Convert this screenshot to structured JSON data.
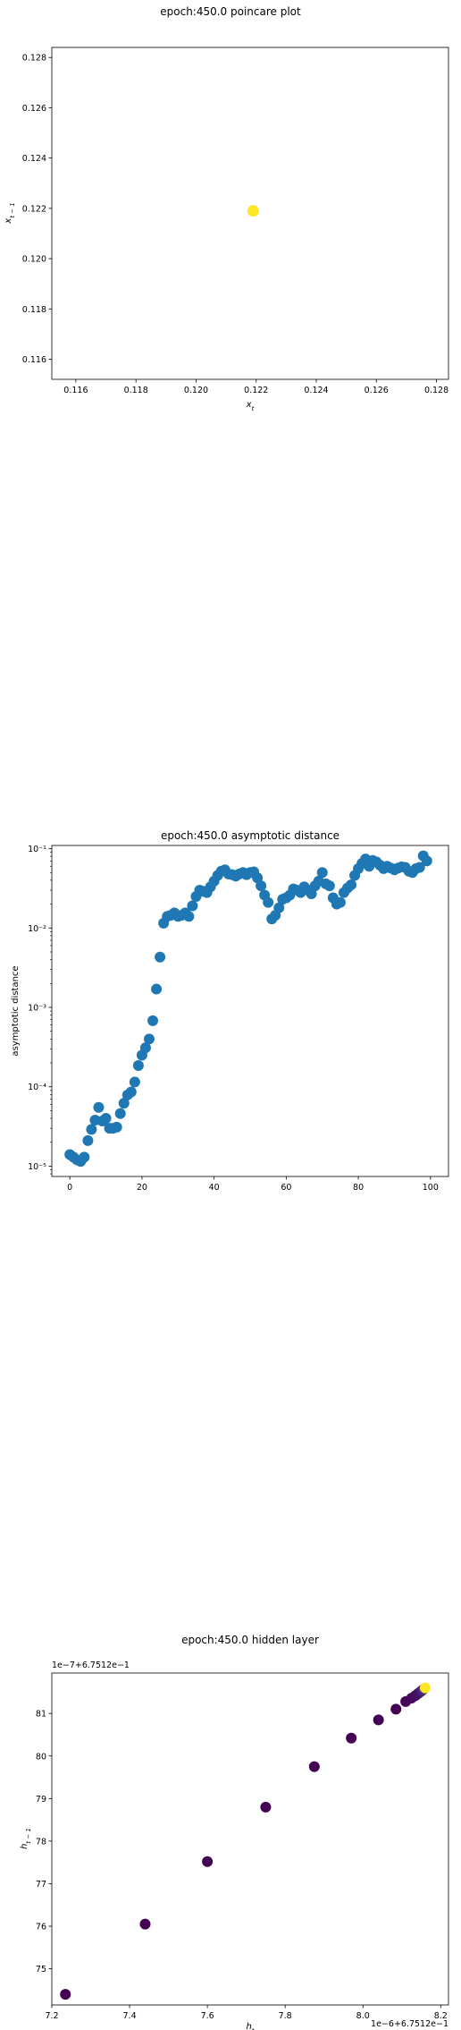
{
  "chart_data": [
    {
      "type": "scatter",
      "title": "epoch:450.0 poincare plot",
      "xlabel": "x_t",
      "ylabel": "x_{t-1}",
      "xlim": [
        0.1152,
        0.1284
      ],
      "ylim": [
        0.1152,
        0.1284
      ],
      "x_ticks": [
        "0.116",
        "0.118",
        "0.120",
        "0.122",
        "0.124",
        "0.126",
        "0.128"
      ],
      "y_ticks": [
        "0.116",
        "0.118",
        "0.120",
        "0.122",
        "0.124",
        "0.126",
        "0.128"
      ],
      "points": [
        {
          "x": 0.1219,
          "y": 0.1219,
          "color": "#fde725"
        }
      ]
    },
    {
      "type": "scatter",
      "title": "epoch:450.0 asymptotic distance",
      "xlabel": "iteration",
      "ylabel": "asymptotic distance",
      "yscale": "log",
      "xlim": [
        -5,
        105
      ],
      "ylim_log10": [
        -5.13,
        -0.96
      ],
      "x_ticks": [
        "0",
        "20",
        "40",
        "60",
        "80",
        "100"
      ],
      "y_ticks": [
        "10⁻⁵",
        "10⁻⁴",
        "10⁻³",
        "10⁻²",
        "10⁻¹"
      ],
      "color": "#1f77b4",
      "x": [
        0,
        1,
        2,
        3,
        4,
        5,
        6,
        7,
        8,
        9,
        10,
        11,
        12,
        13,
        14,
        15,
        16,
        17,
        18,
        19,
        20,
        21,
        22,
        23,
        24,
        25,
        26,
        27,
        28,
        29,
        30,
        31,
        32,
        33,
        34,
        35,
        36,
        37,
        38,
        39,
        40,
        41,
        42,
        43,
        44,
        45,
        46,
        47,
        48,
        49,
        50,
        51,
        52,
        53,
        54,
        55,
        56,
        57,
        58,
        59,
        60,
        61,
        62,
        63,
        64,
        65,
        66,
        67,
        68,
        69,
        70,
        71,
        72,
        73,
        74,
        75,
        76,
        77,
        78,
        79,
        80,
        81,
        82,
        83,
        84,
        85,
        86,
        87,
        88,
        89,
        90,
        91,
        92,
        93,
        94,
        95,
        96,
        97,
        98,
        99
      ],
      "y": [
        1.4e-05,
        1.3e-05,
        1.2e-05,
        1.15e-05,
        1.3e-05,
        2.1e-05,
        2.9e-05,
        3.8e-05,
        5.5e-05,
        3.7e-05,
        4e-05,
        3e-05,
        3e-05,
        3.1e-05,
        4.6e-05,
        6.2e-05,
        7.9e-05,
        8.6e-05,
        0.000115,
        0.000185,
        0.00025,
        0.00031,
        0.0004,
        0.00068,
        0.0017,
        0.0043,
        0.0115,
        0.014,
        0.0145,
        0.0155,
        0.014,
        0.0145,
        0.0155,
        0.014,
        0.019,
        0.025,
        0.03,
        0.029,
        0.028,
        0.033,
        0.039,
        0.046,
        0.052,
        0.054,
        0.048,
        0.047,
        0.045,
        0.048,
        0.05,
        0.047,
        0.05,
        0.051,
        0.043,
        0.034,
        0.026,
        0.021,
        0.013,
        0.0145,
        0.018,
        0.023,
        0.024,
        0.026,
        0.031,
        0.03,
        0.028,
        0.033,
        0.03,
        0.027,
        0.034,
        0.039,
        0.05,
        0.036,
        0.034,
        0.024,
        0.02,
        0.021,
        0.028,
        0.032,
        0.035,
        0.046,
        0.056,
        0.065,
        0.074,
        0.06,
        0.071,
        0.068,
        0.062,
        0.056,
        0.06,
        0.057,
        0.054,
        0.057,
        0.059,
        0.058,
        0.052,
        0.05,
        0.056,
        0.058,
        0.081,
        0.07
      ]
    },
    {
      "type": "scatter",
      "title": "epoch:450.0 hidden layer",
      "xlabel": "h_t",
      "ylabel": "h_{t-1}",
      "x_offset_label": "1e−6+6.7512e−1",
      "y_offset_label": "1e−7+6.7512e−1",
      "xlim": [
        7.2,
        8.22
      ],
      "ylim": [
        74.15,
        81.95
      ],
      "x_ticks": [
        "7.2",
        "7.4",
        "7.6",
        "7.8",
        "8.0",
        "8.2"
      ],
      "y_ticks": [
        "75",
        "76",
        "77",
        "78",
        "79",
        "80",
        "81"
      ],
      "colormap": "viridis",
      "points": [
        {
          "x": 7.235,
          "y": 74.4,
          "color": "#440154"
        },
        {
          "x": 7.44,
          "y": 76.05,
          "color": "#440154"
        },
        {
          "x": 7.6,
          "y": 77.52,
          "color": "#440154"
        },
        {
          "x": 7.75,
          "y": 78.8,
          "color": "#440154"
        },
        {
          "x": 7.875,
          "y": 79.75,
          "color": "#440154"
        },
        {
          "x": 7.97,
          "y": 80.42,
          "color": "#440154"
        },
        {
          "x": 8.04,
          "y": 80.85,
          "color": "#440154"
        },
        {
          "x": 8.085,
          "y": 81.1,
          "color": "#440154"
        },
        {
          "x": 8.11,
          "y": 81.28,
          "color": "#450559"
        },
        {
          "x": 8.125,
          "y": 81.36,
          "color": "#46085c"
        },
        {
          "x": 8.135,
          "y": 81.42,
          "color": "#460b5e"
        },
        {
          "x": 8.142,
          "y": 81.47,
          "color": "#471063"
        },
        {
          "x": 8.148,
          "y": 81.51,
          "color": "#481467"
        },
        {
          "x": 8.152,
          "y": 81.54,
          "color": "#482173"
        },
        {
          "x": 8.156,
          "y": 81.57,
          "color": "#46327e"
        },
        {
          "x": 8.16,
          "y": 81.6,
          "color": "#fde725"
        }
      ]
    }
  ]
}
